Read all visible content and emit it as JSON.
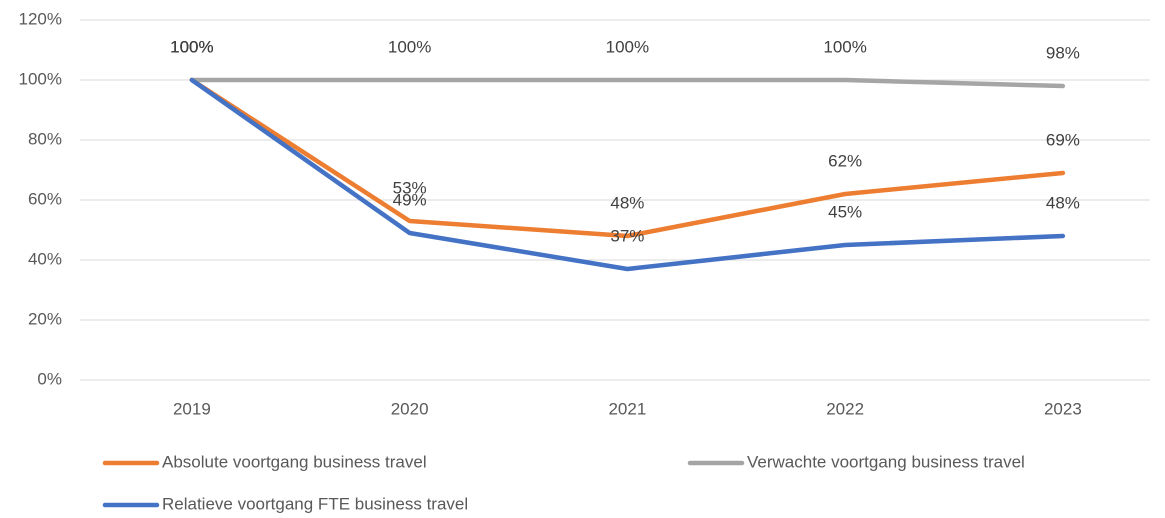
{
  "chart_data": {
    "type": "line",
    "categories": [
      "2019",
      "2020",
      "2021",
      "2022",
      "2023"
    ],
    "series": [
      {
        "name": "Absolute voortgang business travel",
        "color": "#ED7D31",
        "values": [
          100,
          53,
          48,
          62,
          69
        ],
        "value_labels": [
          "100%",
          "53%",
          "48%",
          "62%",
          "69%"
        ]
      },
      {
        "name": "Verwachte voortgang business travel",
        "color": "#A5A5A5",
        "values": [
          100,
          100,
          100,
          100,
          98
        ],
        "value_labels": [
          "100%",
          "100%",
          "100%",
          "100%",
          "98%"
        ]
      },
      {
        "name": "Relatieve voortgang FTE business travel",
        "color": "#4472C4",
        "values": [
          100,
          49,
          37,
          45,
          48
        ],
        "value_labels": [
          "100%",
          "49%",
          "37%",
          "45%",
          "48%"
        ]
      }
    ],
    "ylim": [
      0,
      120
    ],
    "yticks": [
      {
        "value": 0,
        "label": "0%"
      },
      {
        "value": 20,
        "label": "20%"
      },
      {
        "value": 40,
        "label": "40%"
      },
      {
        "value": 60,
        "label": "60%"
      },
      {
        "value": 80,
        "label": "80%"
      },
      {
        "value": 100,
        "label": "100%"
      },
      {
        "value": 120,
        "label": "120%"
      }
    ],
    "grid": true
  }
}
